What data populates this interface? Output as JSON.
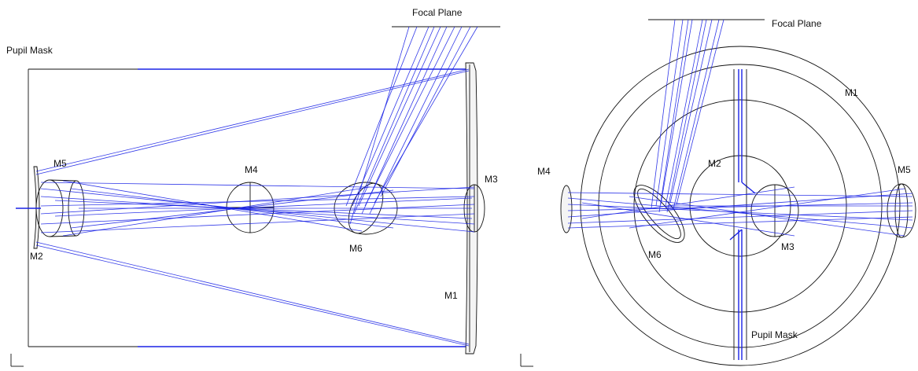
{
  "left_view": {
    "labels": {
      "focal_plane": "Focal Plane",
      "pupil_mask": "Pupil Mask",
      "m1": "M1",
      "m2": "M2",
      "m3": "M3",
      "m4": "M4",
      "m5": "M5",
      "m6": "M6"
    }
  },
  "right_view": {
    "labels": {
      "focal_plane": "Focal Plane",
      "pupil_mask": "Pupil Mask",
      "m1": "M1",
      "m2": "M2",
      "m3": "M3",
      "m4": "M4",
      "m5": "M5",
      "m6": "M6"
    }
  },
  "colors": {
    "rays": "#1a22e6",
    "mechanical": "#111111",
    "background": "#ffffff"
  }
}
